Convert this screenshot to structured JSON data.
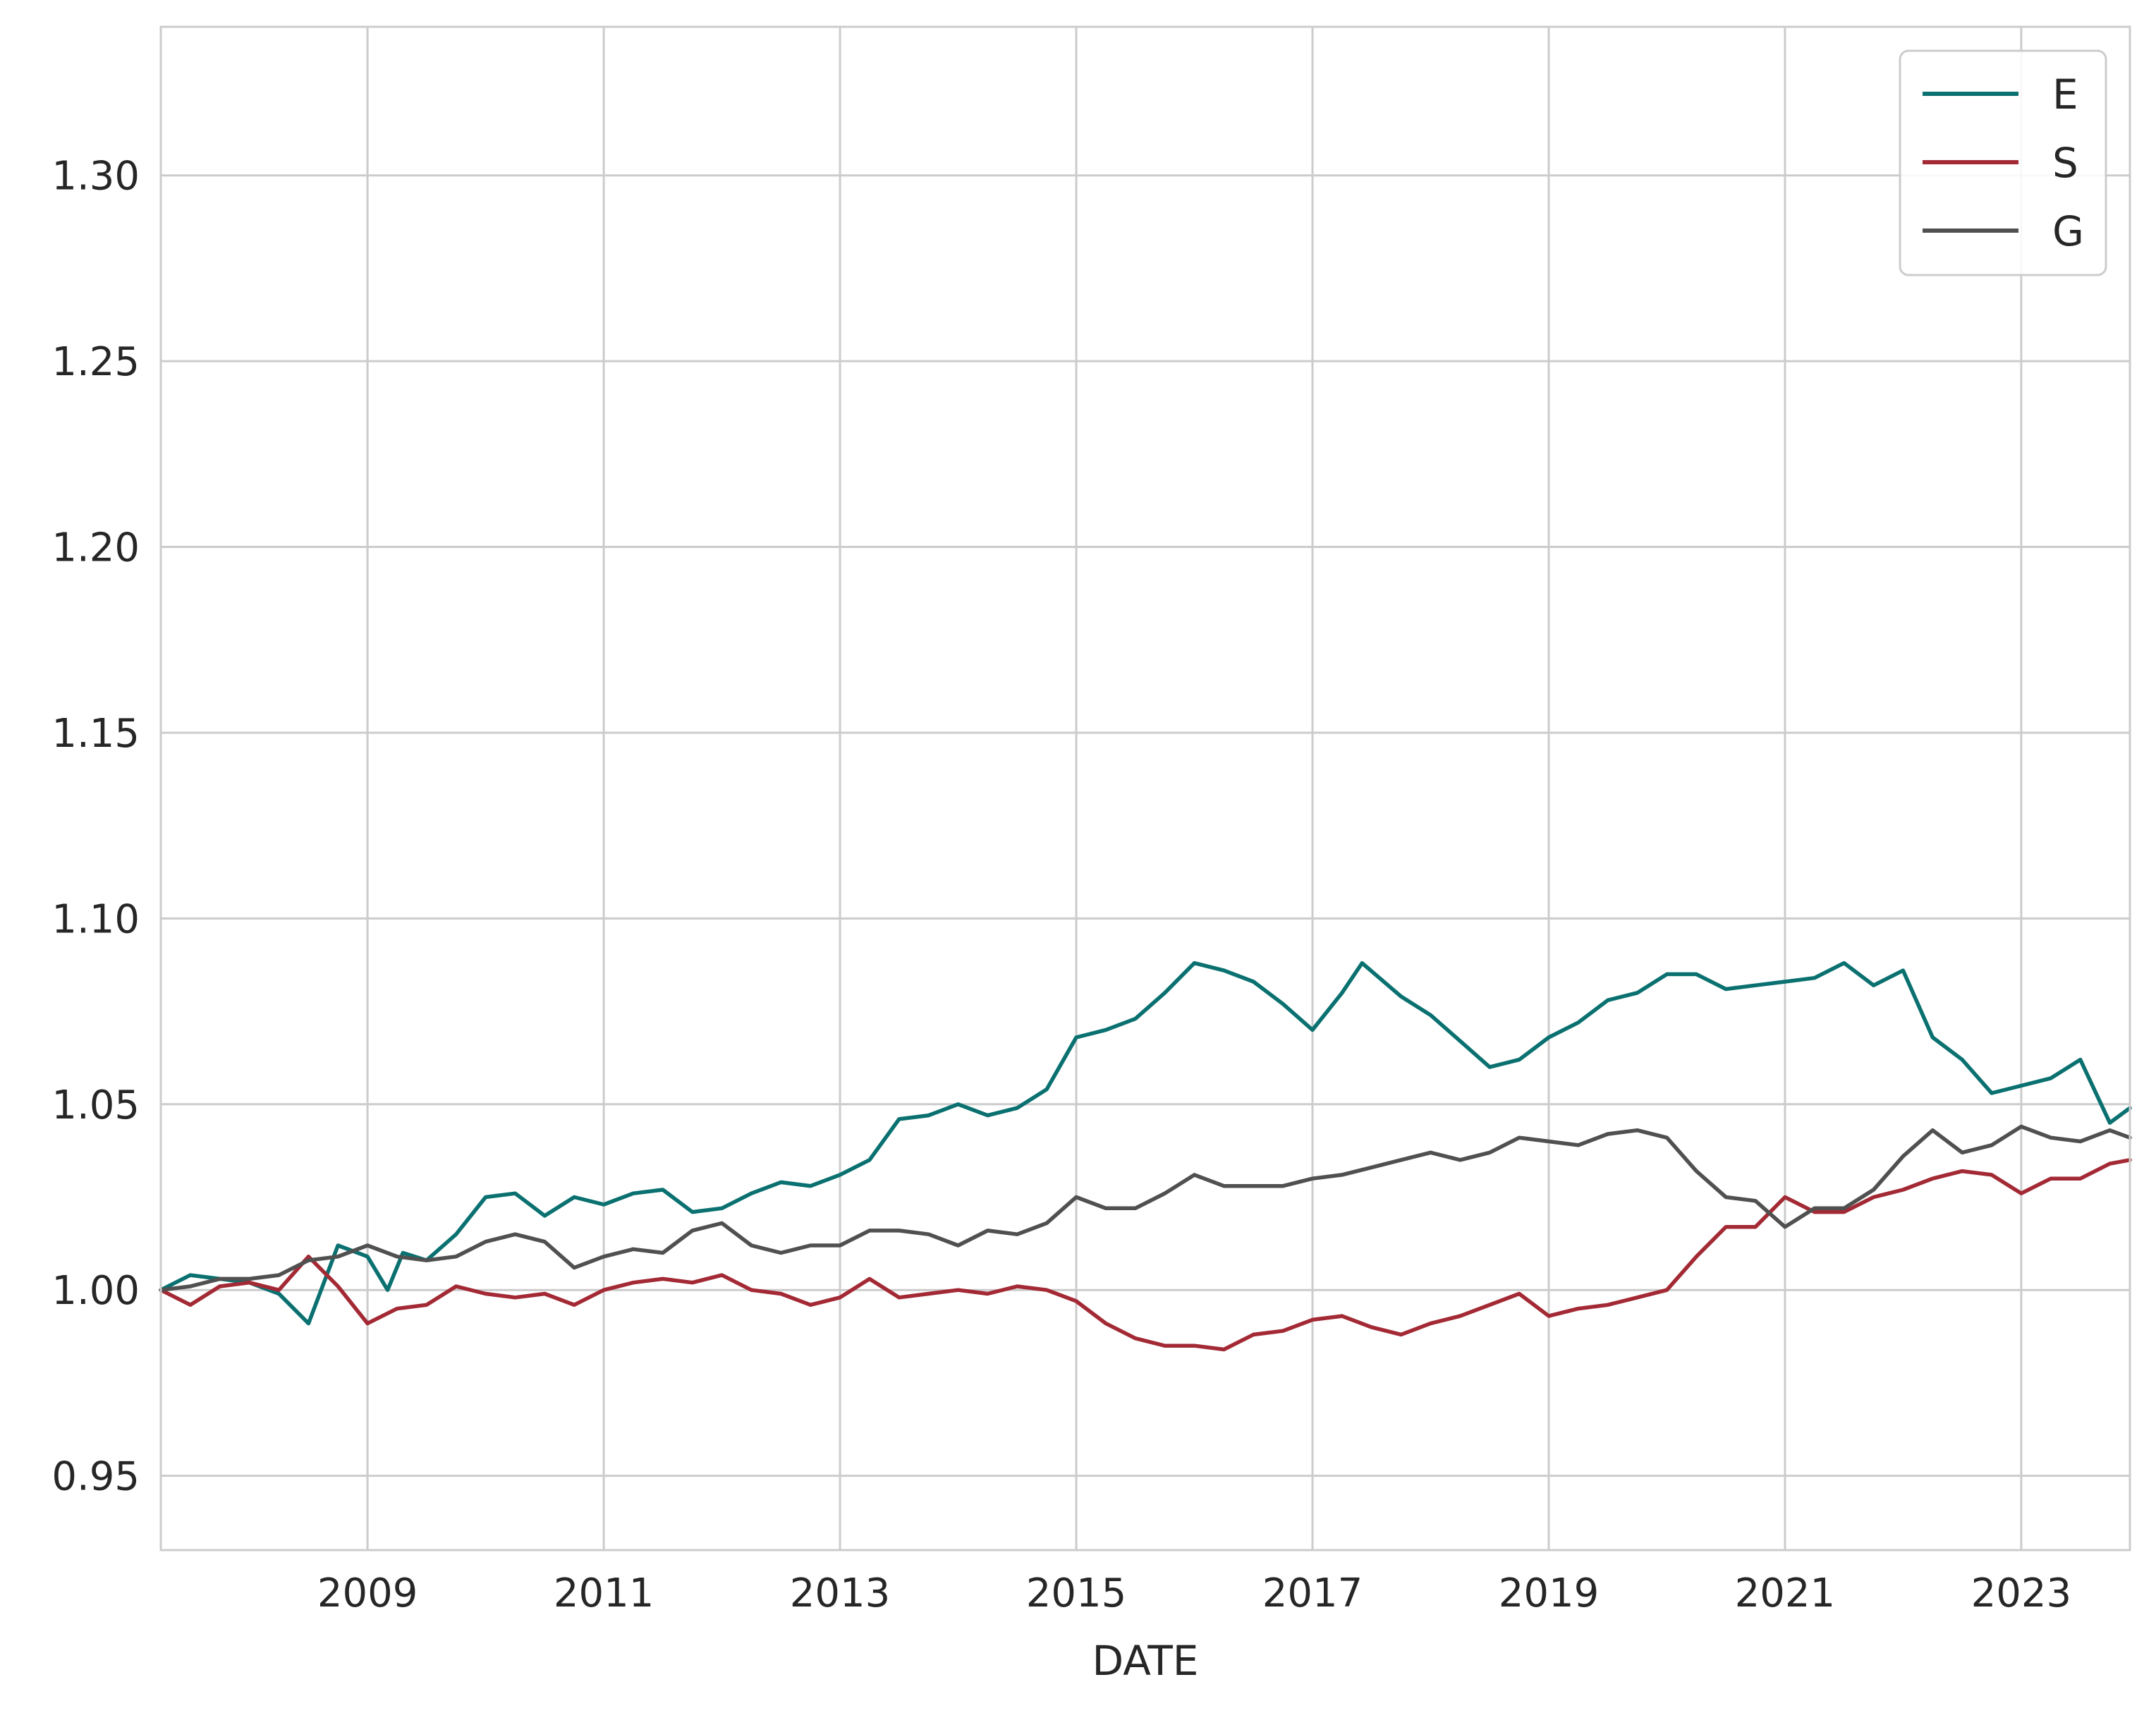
{
  "chart_data": {
    "type": "line",
    "xlabel": "DATE",
    "ylabel": "",
    "title": "",
    "x_ticks": [
      "2009",
      "2011",
      "2013",
      "2015",
      "2017",
      "2019",
      "2021",
      "2023"
    ],
    "y_ticks": [
      "0.95",
      "1.00",
      "1.05",
      "1.10",
      "1.15",
      "1.20",
      "1.25",
      "1.30"
    ],
    "xlim": [
      2007.25,
      2023.92
    ],
    "ylim": [
      0.93,
      1.34
    ],
    "grid": true,
    "legend_position": "top-right",
    "series": [
      {
        "name": "E",
        "color": "#0a7070",
        "points": [
          [
            2007.25,
            1.0
          ],
          [
            2007.5,
            1.004
          ],
          [
            2007.75,
            1.003
          ],
          [
            2008.0,
            1.002
          ],
          [
            2008.25,
            0.999
          ],
          [
            2008.5,
            0.991
          ],
          [
            2008.75,
            1.012
          ],
          [
            2009.0,
            1.009
          ],
          [
            2009.17,
            1.0
          ],
          [
            2009.3,
            1.01
          ],
          [
            2009.5,
            1.008
          ],
          [
            2009.75,
            1.015
          ],
          [
            2010.0,
            1.025
          ],
          [
            2010.25,
            1.026
          ],
          [
            2010.5,
            1.02
          ],
          [
            2010.75,
            1.025
          ],
          [
            2011.0,
            1.023
          ],
          [
            2011.25,
            1.026
          ],
          [
            2011.5,
            1.027
          ],
          [
            2011.75,
            1.021
          ],
          [
            2012.0,
            1.022
          ],
          [
            2012.25,
            1.026
          ],
          [
            2012.5,
            1.029
          ],
          [
            2012.75,
            1.028
          ],
          [
            2013.0,
            1.031
          ],
          [
            2013.25,
            1.035
          ],
          [
            2013.5,
            1.046
          ],
          [
            2013.75,
            1.047
          ],
          [
            2014.0,
            1.05
          ],
          [
            2014.25,
            1.047
          ],
          [
            2014.5,
            1.049
          ],
          [
            2014.75,
            1.054
          ],
          [
            2015.0,
            1.068
          ],
          [
            2015.25,
            1.07
          ],
          [
            2015.5,
            1.073
          ],
          [
            2015.75,
            1.08
          ],
          [
            2016.0,
            1.088
          ],
          [
            2016.25,
            1.086
          ],
          [
            2016.5,
            1.083
          ],
          [
            2016.75,
            1.077
          ],
          [
            2017.0,
            1.07
          ],
          [
            2017.25,
            1.08
          ],
          [
            2017.42,
            1.088
          ],
          [
            2017.75,
            1.079
          ],
          [
            2018.0,
            1.074
          ],
          [
            2018.25,
            1.067
          ],
          [
            2018.5,
            1.06
          ],
          [
            2018.75,
            1.062
          ],
          [
            2019.0,
            1.068
          ],
          [
            2019.25,
            1.072
          ],
          [
            2019.5,
            1.078
          ],
          [
            2019.75,
            1.08
          ],
          [
            2020.0,
            1.085
          ],
          [
            2020.25,
            1.085
          ],
          [
            2020.5,
            1.081
          ],
          [
            2020.75,
            1.082
          ],
          [
            2021.0,
            1.083
          ],
          [
            2021.25,
            1.084
          ],
          [
            2021.5,
            1.088
          ],
          [
            2021.75,
            1.082
          ],
          [
            2022.0,
            1.086
          ],
          [
            2022.25,
            1.068
          ],
          [
            2022.5,
            1.062
          ],
          [
            2022.75,
            1.053
          ],
          [
            2023.0,
            1.055
          ],
          [
            2023.25,
            1.057
          ],
          [
            2023.5,
            1.062
          ],
          [
            2023.75,
            1.045
          ],
          [
            2023.92,
            1.049
          ]
        ]
      },
      {
        "name": "S",
        "color": "#a32a35",
        "points": [
          [
            2007.25,
            1.0
          ],
          [
            2007.5,
            0.996
          ],
          [
            2007.75,
            1.001
          ],
          [
            2008.0,
            1.002
          ],
          [
            2008.25,
            1.0
          ],
          [
            2008.5,
            1.009
          ],
          [
            2008.75,
            1.001
          ],
          [
            2009.0,
            0.991
          ],
          [
            2009.25,
            0.995
          ],
          [
            2009.5,
            0.996
          ],
          [
            2009.75,
            1.001
          ],
          [
            2010.0,
            0.999
          ],
          [
            2010.25,
            0.998
          ],
          [
            2010.5,
            0.999
          ],
          [
            2010.75,
            0.996
          ],
          [
            2011.0,
            1.0
          ],
          [
            2011.25,
            1.002
          ],
          [
            2011.5,
            1.003
          ],
          [
            2011.75,
            1.002
          ],
          [
            2012.0,
            1.004
          ],
          [
            2012.25,
            1.0
          ],
          [
            2012.5,
            0.999
          ],
          [
            2012.75,
            0.996
          ],
          [
            2013.0,
            0.998
          ],
          [
            2013.25,
            1.003
          ],
          [
            2013.5,
            0.998
          ],
          [
            2013.75,
            0.999
          ],
          [
            2014.0,
            1.0
          ],
          [
            2014.25,
            0.999
          ],
          [
            2014.5,
            1.001
          ],
          [
            2014.75,
            1.0
          ],
          [
            2015.0,
            0.997
          ],
          [
            2015.25,
            0.991
          ],
          [
            2015.5,
            0.987
          ],
          [
            2015.75,
            0.985
          ],
          [
            2016.0,
            0.985
          ],
          [
            2016.25,
            0.984
          ],
          [
            2016.5,
            0.988
          ],
          [
            2016.75,
            0.989
          ],
          [
            2017.0,
            0.992
          ],
          [
            2017.25,
            0.993
          ],
          [
            2017.5,
            0.99
          ],
          [
            2017.75,
            0.988
          ],
          [
            2018.0,
            0.991
          ],
          [
            2018.25,
            0.993
          ],
          [
            2018.5,
            0.996
          ],
          [
            2018.75,
            0.999
          ],
          [
            2019.0,
            0.993
          ],
          [
            2019.25,
            0.995
          ],
          [
            2019.5,
            0.996
          ],
          [
            2019.75,
            0.998
          ],
          [
            2020.0,
            1.0
          ],
          [
            2020.25,
            1.009
          ],
          [
            2020.5,
            1.017
          ],
          [
            2020.75,
            1.017
          ],
          [
            2021.0,
            1.025
          ],
          [
            2021.25,
            1.021
          ],
          [
            2021.5,
            1.021
          ],
          [
            2021.75,
            1.025
          ],
          [
            2022.0,
            1.027
          ],
          [
            2022.25,
            1.03
          ],
          [
            2022.5,
            1.032
          ],
          [
            2022.75,
            1.031
          ],
          [
            2023.0,
            1.026
          ],
          [
            2023.25,
            1.03
          ],
          [
            2023.5,
            1.03
          ],
          [
            2023.75,
            1.034
          ],
          [
            2023.92,
            1.035
          ]
        ]
      },
      {
        "name": "G",
        "color": "#505050",
        "points": [
          [
            2007.25,
            1.0
          ],
          [
            2007.5,
            1.001
          ],
          [
            2007.75,
            1.003
          ],
          [
            2008.0,
            1.003
          ],
          [
            2008.25,
            1.004
          ],
          [
            2008.5,
            1.008
          ],
          [
            2008.75,
            1.009
          ],
          [
            2009.0,
            1.012
          ],
          [
            2009.25,
            1.009
          ],
          [
            2009.5,
            1.008
          ],
          [
            2009.75,
            1.009
          ],
          [
            2010.0,
            1.013
          ],
          [
            2010.25,
            1.015
          ],
          [
            2010.5,
            1.013
          ],
          [
            2010.75,
            1.006
          ],
          [
            2011.0,
            1.009
          ],
          [
            2011.25,
            1.011
          ],
          [
            2011.5,
            1.01
          ],
          [
            2011.75,
            1.016
          ],
          [
            2012.0,
            1.018
          ],
          [
            2012.25,
            1.012
          ],
          [
            2012.5,
            1.01
          ],
          [
            2012.75,
            1.012
          ],
          [
            2013.0,
            1.012
          ],
          [
            2013.25,
            1.016
          ],
          [
            2013.5,
            1.016
          ],
          [
            2013.75,
            1.015
          ],
          [
            2014.0,
            1.012
          ],
          [
            2014.25,
            1.016
          ],
          [
            2014.5,
            1.015
          ],
          [
            2014.75,
            1.018
          ],
          [
            2015.0,
            1.025
          ],
          [
            2015.25,
            1.022
          ],
          [
            2015.5,
            1.022
          ],
          [
            2015.75,
            1.026
          ],
          [
            2016.0,
            1.031
          ],
          [
            2016.25,
            1.028
          ],
          [
            2016.5,
            1.028
          ],
          [
            2016.75,
            1.028
          ],
          [
            2017.0,
            1.03
          ],
          [
            2017.25,
            1.031
          ],
          [
            2017.5,
            1.033
          ],
          [
            2017.75,
            1.035
          ],
          [
            2018.0,
            1.037
          ],
          [
            2018.25,
            1.035
          ],
          [
            2018.5,
            1.037
          ],
          [
            2018.75,
            1.041
          ],
          [
            2019.0,
            1.04
          ],
          [
            2019.25,
            1.039
          ],
          [
            2019.5,
            1.042
          ],
          [
            2019.75,
            1.043
          ],
          [
            2020.0,
            1.041
          ],
          [
            2020.25,
            1.032
          ],
          [
            2020.5,
            1.025
          ],
          [
            2020.75,
            1.024
          ],
          [
            2021.0,
            1.017
          ],
          [
            2021.25,
            1.022
          ],
          [
            2021.5,
            1.022
          ],
          [
            2021.75,
            1.027
          ],
          [
            2022.0,
            1.036
          ],
          [
            2022.25,
            1.043
          ],
          [
            2022.5,
            1.037
          ],
          [
            2022.75,
            1.039
          ],
          [
            2023.0,
            1.044
          ],
          [
            2023.25,
            1.041
          ],
          [
            2023.5,
            1.04
          ],
          [
            2023.75,
            1.043
          ],
          [
            2023.92,
            1.041
          ]
        ]
      }
    ]
  }
}
